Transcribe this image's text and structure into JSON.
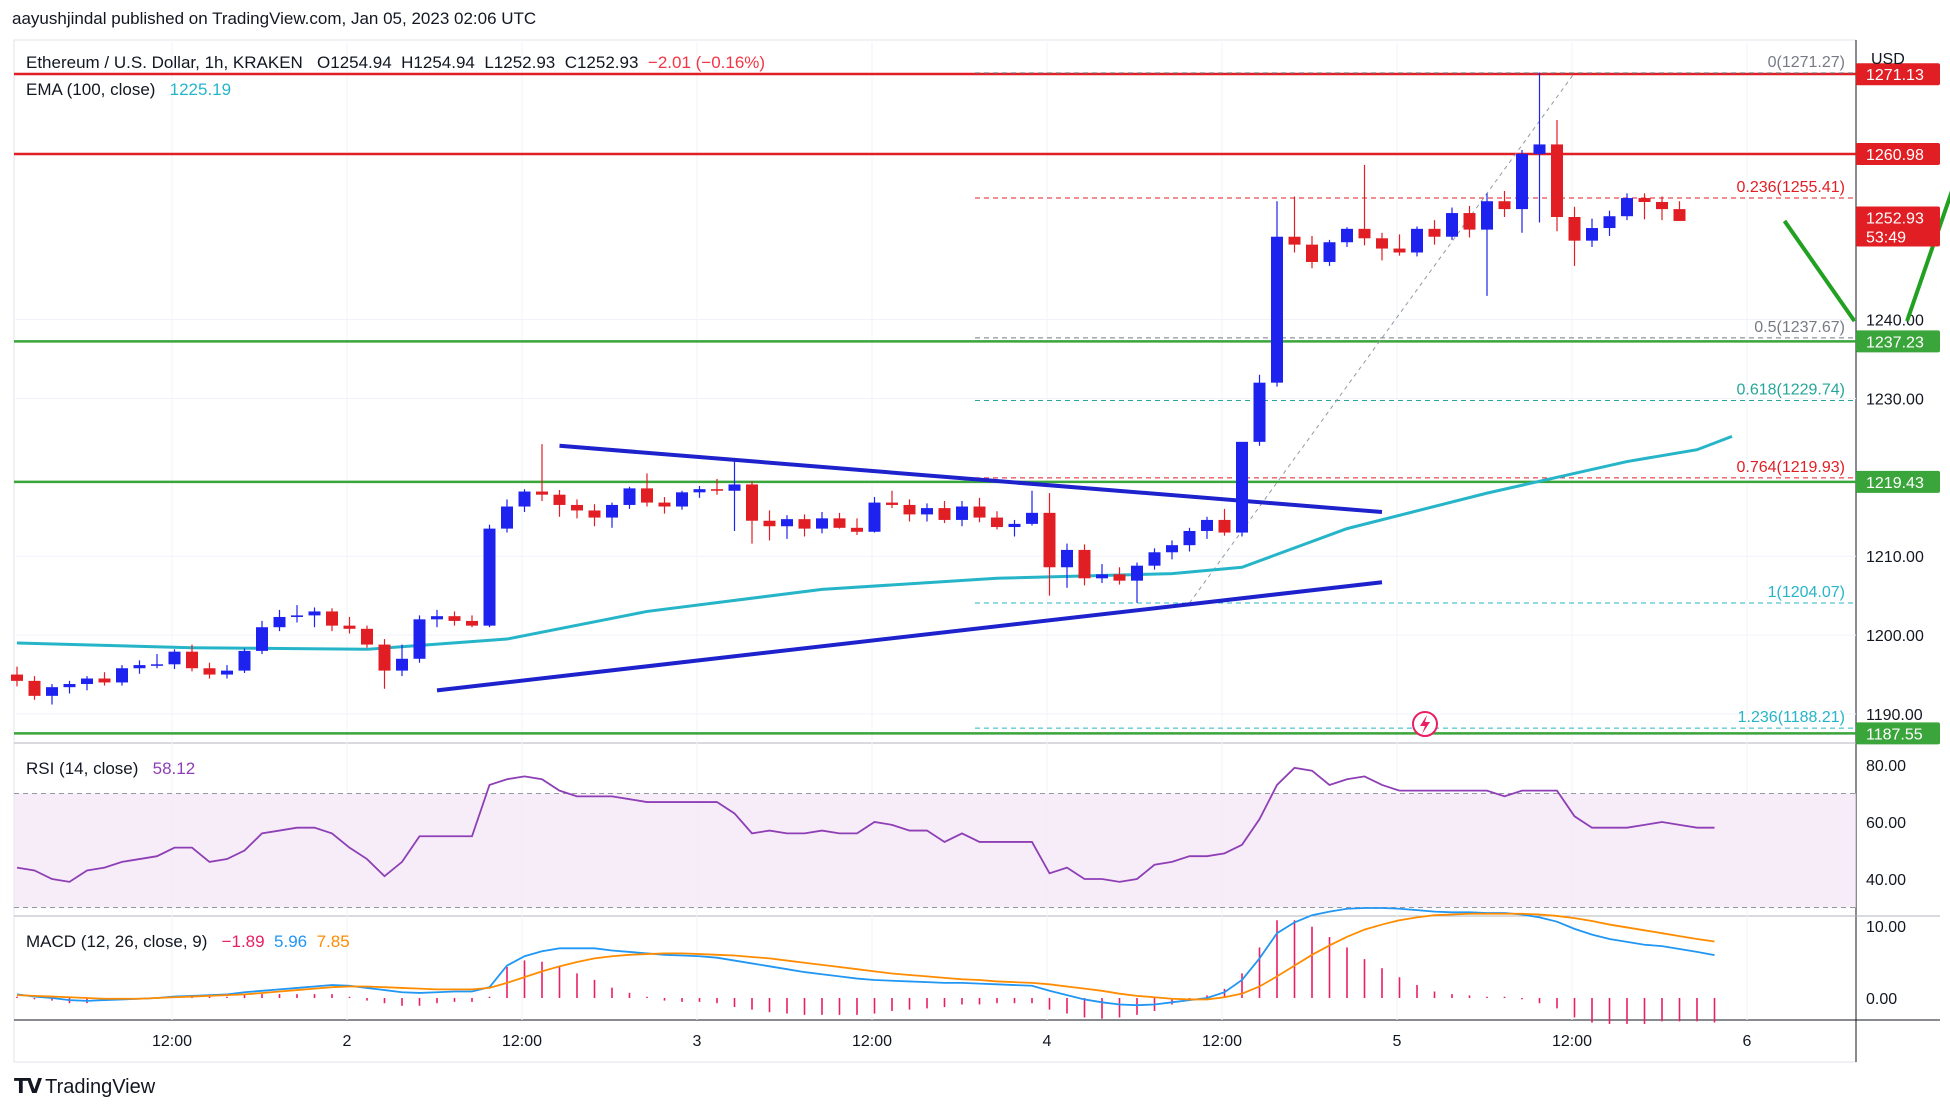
{
  "publisher_line": "aayushjindal published on TradingView.com, Jan 05, 2023 02:06 UTC",
  "watermark": "TradingView",
  "currency": "USD",
  "header": {
    "symbol": "Ethereum / U.S. Dollar, 1h, KRAKEN",
    "open": "O1254.94",
    "high": "H1254.94",
    "low": "L1252.93",
    "close": "C1252.93",
    "change": "−2.01 (−0.16%)"
  },
  "ema": {
    "label": "EMA (100, close)",
    "value": "1225.19"
  },
  "rsi": {
    "label": "RSI (14, close)",
    "value": "58.12"
  },
  "macd": {
    "label": "MACD (12, 26, close, 9)",
    "hist": "−1.89",
    "macd": "5.96",
    "signal": "7.85"
  },
  "colors": {
    "up": "#1e22ee",
    "down": "#e01e24",
    "ema": "#26b5c8",
    "resistance": "#e01e24",
    "support": "#3aa53a",
    "trendline": "#1e22cc",
    "forecast": "#22a022",
    "rsi": "#8e3fb5",
    "macd_line": "#2196f3",
    "signal_line": "#ff8c00",
    "hist": "#e91e63"
  },
  "chart_data": [
    {
      "type": "candlestick",
      "title": "Ethereum / U.S. Dollar, 1h, KRAKEN",
      "x_ticks": [
        "12:00",
        "2",
        "12:00",
        "3",
        "12:00",
        "4",
        "12:00",
        "5",
        "12:00",
        "6"
      ],
      "y_ticks": [
        "1190.00",
        "1200.00",
        "1210.00",
        "1230.00",
        "1240.00"
      ],
      "ylim": [
        1186,
        1273
      ],
      "price_tags": [
        {
          "label": "1271.13",
          "value": 1271.1,
          "color": "#e01e24"
        },
        {
          "label": "1260.98",
          "value": 1260.98,
          "color": "#e01e24"
        },
        {
          "label": "1252.93",
          "value": 1252.93,
          "color": "#e01e24",
          "sub": "53:49"
        },
        {
          "label": "1237.23",
          "value": 1237.23,
          "color": "#3aa53a"
        },
        {
          "label": "1219.43",
          "value": 1219.43,
          "color": "#3aa53a"
        },
        {
          "label": "1187.55",
          "value": 1187.55,
          "color": "#3aa53a"
        }
      ],
      "horizontal_levels": [
        {
          "value": 1271.13,
          "color": "#e01e24"
        },
        {
          "value": 1260.98,
          "color": "#e01e24"
        },
        {
          "value": 1237.23,
          "color": "#3aa53a"
        },
        {
          "value": 1219.43,
          "color": "#3aa53a"
        },
        {
          "value": 1187.55,
          "color": "#3aa53a"
        }
      ],
      "fibonacci": [
        {
          "label": "0(1271.27)",
          "value": 1271.27,
          "color": "#787b86"
        },
        {
          "label": "0.236(1255.41)",
          "value": 1255.41,
          "color": "#e01e24"
        },
        {
          "label": "0.5(1237.67)",
          "value": 1237.67,
          "color": "#787b86"
        },
        {
          "label": "0.618(1229.74)",
          "value": 1229.74,
          "color": "#26a69a"
        },
        {
          "label": "0.764(1219.93)",
          "value": 1219.93,
          "color": "#e01e24"
        },
        {
          "label": "1(1204.07)",
          "value": 1204.07,
          "color": "#26b5c8"
        },
        {
          "label": "1.236(1188.21)",
          "value": 1188.21,
          "color": "#26b5c8"
        }
      ],
      "candles": [
        [
          1195.0,
          1196.0,
          1193.5,
          1194.2
        ],
        [
          1194.2,
          1194.8,
          1191.8,
          1192.3
        ],
        [
          1192.3,
          1193.8,
          1191.2,
          1193.4
        ],
        [
          1193.4,
          1194.2,
          1192.6,
          1193.8
        ],
        [
          1193.8,
          1194.8,
          1193.0,
          1194.5
        ],
        [
          1194.5,
          1195.3,
          1193.6,
          1194.0
        ],
        [
          1194.0,
          1196.2,
          1193.6,
          1195.8
        ],
        [
          1195.8,
          1196.8,
          1195.1,
          1196.2
        ],
        [
          1196.2,
          1197.6,
          1195.8,
          1196.3
        ],
        [
          1196.3,
          1198.2,
          1195.7,
          1197.9
        ],
        [
          1197.9,
          1198.8,
          1195.4,
          1195.8
        ],
        [
          1195.8,
          1196.5,
          1194.5,
          1195.0
        ],
        [
          1195.0,
          1196.2,
          1194.5,
          1195.5
        ],
        [
          1195.5,
          1198.3,
          1195.2,
          1198.0
        ],
        [
          1198.0,
          1201.8,
          1197.6,
          1201.0
        ],
        [
          1201.0,
          1203.2,
          1200.5,
          1202.3
        ],
        [
          1202.3,
          1203.8,
          1201.6,
          1202.5
        ],
        [
          1202.5,
          1203.5,
          1201.0,
          1203.0
        ],
        [
          1203.0,
          1203.4,
          1200.5,
          1201.2
        ],
        [
          1201.2,
          1202.3,
          1200.2,
          1200.8
        ],
        [
          1200.8,
          1201.2,
          1198.4,
          1198.8
        ],
        [
          1198.8,
          1199.5,
          1193.2,
          1195.5
        ],
        [
          1195.5,
          1198.8,
          1194.8,
          1197.0
        ],
        [
          1197.0,
          1202.5,
          1196.5,
          1202.0
        ],
        [
          1202.0,
          1203.2,
          1201.0,
          1202.4
        ],
        [
          1202.4,
          1203.0,
          1201.2,
          1201.8
        ],
        [
          1201.8,
          1202.5,
          1201.0,
          1201.2
        ],
        [
          1201.2,
          1214.0,
          1201.0,
          1213.5
        ],
        [
          1213.5,
          1217.2,
          1213.0,
          1216.3
        ],
        [
          1216.3,
          1218.5,
          1215.6,
          1218.2
        ],
        [
          1218.2,
          1224.2,
          1217.0,
          1217.8
        ],
        [
          1217.8,
          1218.4,
          1215.0,
          1216.5
        ],
        [
          1216.5,
          1217.2,
          1214.8,
          1215.8
        ],
        [
          1215.8,
          1216.6,
          1213.8,
          1214.9
        ],
        [
          1214.9,
          1216.8,
          1213.6,
          1216.5
        ],
        [
          1216.5,
          1218.8,
          1216.0,
          1218.6
        ],
        [
          1218.6,
          1220.5,
          1216.3,
          1216.8
        ],
        [
          1216.8,
          1217.5,
          1215.4,
          1216.3
        ],
        [
          1216.3,
          1218.3,
          1215.9,
          1218.1
        ],
        [
          1218.1,
          1218.9,
          1217.4,
          1218.5
        ],
        [
          1218.5,
          1219.8,
          1217.8,
          1218.3
        ],
        [
          1218.3,
          1222.0,
          1213.2,
          1219.1
        ],
        [
          1219.1,
          1219.5,
          1211.6,
          1214.5
        ],
        [
          1214.5,
          1215.8,
          1212.0,
          1213.8
        ],
        [
          1213.8,
          1215.2,
          1212.2,
          1214.7
        ],
        [
          1214.7,
          1215.3,
          1212.5,
          1213.5
        ],
        [
          1213.5,
          1215.6,
          1212.9,
          1214.8
        ],
        [
          1214.8,
          1215.5,
          1213.5,
          1213.6
        ],
        [
          1213.6,
          1214.8,
          1212.7,
          1213.1
        ],
        [
          1213.1,
          1217.5,
          1213.0,
          1216.8
        ],
        [
          1216.8,
          1218.3,
          1216.1,
          1216.5
        ],
        [
          1216.5,
          1217.2,
          1214.4,
          1215.3
        ],
        [
          1215.3,
          1216.7,
          1214.4,
          1216.1
        ],
        [
          1216.1,
          1217.0,
          1214.2,
          1214.6
        ],
        [
          1214.6,
          1217.0,
          1213.8,
          1216.3
        ],
        [
          1216.3,
          1217.4,
          1214.3,
          1214.9
        ],
        [
          1214.9,
          1215.7,
          1213.4,
          1213.7
        ],
        [
          1213.7,
          1214.6,
          1212.5,
          1214.1
        ],
        [
          1214.1,
          1218.3,
          1213.9,
          1215.5
        ],
        [
          1215.5,
          1218.0,
          1205.0,
          1208.6
        ],
        [
          1208.6,
          1211.6,
          1206.0,
          1210.8
        ],
        [
          1210.8,
          1211.5,
          1206.3,
          1207.2
        ],
        [
          1207.2,
          1209.0,
          1206.6,
          1207.7
        ],
        [
          1207.7,
          1208.6,
          1206.4,
          1206.9
        ],
        [
          1206.9,
          1209.2,
          1204.1,
          1208.8
        ],
        [
          1208.8,
          1211.0,
          1208.3,
          1210.5
        ],
        [
          1210.5,
          1212.0,
          1209.6,
          1211.4
        ],
        [
          1211.4,
          1213.6,
          1210.6,
          1213.2
        ],
        [
          1213.2,
          1215.0,
          1212.2,
          1214.6
        ],
        [
          1214.6,
          1216.0,
          1212.6,
          1213.0
        ],
        [
          1213.0,
          1224.0,
          1212.5,
          1224.5
        ],
        [
          1224.5,
          1233.0,
          1224.0,
          1232.0
        ],
        [
          1232.0,
          1255.0,
          1231.5,
          1250.5
        ],
        [
          1250.5,
          1255.6,
          1248.5,
          1249.5
        ],
        [
          1249.5,
          1250.6,
          1246.5,
          1247.3
        ],
        [
          1247.3,
          1250.1,
          1246.8,
          1249.8
        ],
        [
          1249.8,
          1251.7,
          1249.2,
          1251.5
        ],
        [
          1251.5,
          1259.6,
          1249.4,
          1250.3
        ],
        [
          1250.3,
          1251.0,
          1247.5,
          1249.0
        ],
        [
          1249.0,
          1250.8,
          1248.1,
          1248.5
        ],
        [
          1248.5,
          1251.8,
          1248.0,
          1251.5
        ],
        [
          1251.5,
          1252.6,
          1249.5,
          1250.5
        ],
        [
          1250.5,
          1254.2,
          1250.1,
          1253.5
        ],
        [
          1253.5,
          1254.4,
          1250.4,
          1251.4
        ],
        [
          1251.4,
          1256.0,
          1243.0,
          1255.0
        ],
        [
          1255.0,
          1256.3,
          1253.0,
          1254.0
        ],
        [
          1254.0,
          1261.5,
          1251.0,
          1261.0
        ],
        [
          1261.0,
          1271.3,
          1252.3,
          1262.2
        ],
        [
          1262.2,
          1265.3,
          1251.2,
          1253.0
        ],
        [
          1253.0,
          1254.3,
          1246.8,
          1250.0
        ],
        [
          1250.0,
          1252.8,
          1249.2,
          1251.6
        ],
        [
          1251.6,
          1253.8,
          1250.6,
          1253.1
        ],
        [
          1253.1,
          1256.0,
          1252.6,
          1255.4
        ],
        [
          1255.4,
          1256.0,
          1252.7,
          1254.9
        ],
        [
          1254.9,
          1255.6,
          1252.6,
          1254.0
        ],
        [
          1254.0,
          1255.0,
          1252.5,
          1252.5
        ]
      ],
      "ema_100": [
        [
          0,
          1199.0
        ],
        [
          10,
          1198.4
        ],
        [
          20,
          1198.2
        ],
        [
          28,
          1199.5
        ],
        [
          36,
          1203.0
        ],
        [
          46,
          1205.8
        ],
        [
          56,
          1207.2
        ],
        [
          66,
          1207.8
        ],
        [
          70,
          1208.6
        ],
        [
          76,
          1213.5
        ],
        [
          84,
          1218.0
        ],
        [
          92,
          1222.0
        ],
        [
          96,
          1223.5
        ],
        [
          98,
          1225.19
        ]
      ],
      "trendlines": [
        {
          "name": "upper",
          "from": [
            31,
            1224.0
          ],
          "to": [
            78,
            1215.6
          ]
        },
        {
          "name": "lower",
          "from": [
            24,
            1193.0
          ],
          "to": [
            78,
            1206.7
          ]
        }
      ],
      "forecast_path": [
        [
          101,
          1252.5
        ],
        [
          105,
          1239.8
        ],
        [
          108,
          1239.8
        ],
        [
          112,
          1265.5
        ]
      ],
      "fib_anchor": {
        "from": [
          67,
          1204.07
        ],
        "to": [
          89,
          1271.27
        ]
      }
    },
    {
      "type": "line",
      "name": "RSI",
      "y_ticks": [
        "40.00",
        "60.00",
        "80.00"
      ],
      "ylim": [
        28,
        93
      ],
      "band": [
        30,
        70
      ],
      "values": [
        44,
        43,
        40,
        39,
        43,
        44,
        46,
        47,
        48,
        51,
        51,
        46,
        47,
        50,
        56,
        57,
        58,
        58,
        56,
        51,
        47,
        41,
        46,
        55,
        55,
        55,
        55,
        73,
        75,
        76,
        75,
        71,
        69,
        69,
        69,
        68,
        67,
        67,
        67,
        67,
        67,
        63,
        56,
        57,
        56,
        56,
        57,
        56,
        56,
        60,
        59,
        57,
        57,
        53,
        56,
        53,
        53,
        53,
        53,
        42,
        44,
        40,
        40,
        39,
        40,
        45,
        46,
        48,
        48,
        49,
        52,
        61,
        73,
        79,
        78,
        73,
        75,
        76,
        73,
        71,
        71,
        71,
        71,
        71,
        71,
        69,
        71,
        71,
        71,
        62,
        58,
        58,
        58,
        59,
        60,
        59,
        58,
        58
      ]
    },
    {
      "type": "bar+line",
      "name": "MACD",
      "y_ticks": [
        "0.00",
        "10.00"
      ],
      "ylim": [
        -3,
        12.5
      ],
      "macd": [
        0.5,
        0.2,
        0,
        -0.3,
        -0.4,
        -0.3,
        -0.2,
        -0.1,
        0,
        0.2,
        0.3,
        0.4,
        0.5,
        0.8,
        1,
        1.2,
        1.4,
        1.6,
        1.8,
        1.7,
        1.4,
        1.1,
        0.8,
        0.7,
        0.8,
        0.9,
        0.9,
        1.5,
        4.5,
        5.8,
        6.5,
        6.9,
        6.9,
        6.9,
        6.6,
        6.4,
        6.2,
        6,
        5.9,
        5.8,
        5.6,
        5.2,
        4.8,
        4.4,
        4,
        3.6,
        3.3,
        3,
        2.7,
        2.5,
        2.4,
        2.3,
        2.2,
        2.1,
        2.1,
        2,
        1.9,
        1.8,
        1.7,
        1,
        0.4,
        -0.2,
        -0.6,
        -0.9,
        -1,
        -0.9,
        -0.6,
        -0.3,
        0,
        0.8,
        2.5,
        5.5,
        9,
        10.5,
        11.5,
        12,
        12.4,
        12.5,
        12.5,
        12.4,
        12.2,
        12,
        11.9,
        11.9,
        11.8,
        11.8,
        11.6,
        11.2,
        10.6,
        9.6,
        8.8,
        8.2,
        7.8,
        7.4,
        7.2,
        6.8,
        6.4,
        5.96
      ],
      "signal": [
        0.4,
        0.3,
        0.2,
        0.1,
        0,
        -0.1,
        -0.1,
        -0.1,
        0,
        0.1,
        0.2,
        0.3,
        0.4,
        0.5,
        0.7,
        0.9,
        1.1,
        1.3,
        1.5,
        1.6,
        1.6,
        1.5,
        1.4,
        1.3,
        1.2,
        1.2,
        1.2,
        1.4,
        2.1,
        2.9,
        3.7,
        4.4,
        5,
        5.5,
        5.8,
        6,
        6.1,
        6.2,
        6.2,
        6.1,
        6,
        5.9,
        5.7,
        5.5,
        5.2,
        4.9,
        4.6,
        4.3,
        4,
        3.7,
        3.4,
        3.2,
        3,
        2.8,
        2.6,
        2.5,
        2.3,
        2.2,
        2.1,
        1.9,
        1.6,
        1.3,
        1,
        0.6,
        0.3,
        0.1,
        -0.1,
        -0.2,
        -0.2,
        0.1,
        0.6,
        1.6,
        3,
        4.5,
        6,
        7.3,
        8.5,
        9.5,
        10.2,
        10.8,
        11.2,
        11.5,
        11.6,
        11.7,
        11.7,
        11.7,
        11.7,
        11.6,
        11.4,
        11.1,
        10.7,
        10.2,
        9.8,
        9.4,
        9,
        8.6,
        8.2,
        7.85
      ]
    }
  ]
}
